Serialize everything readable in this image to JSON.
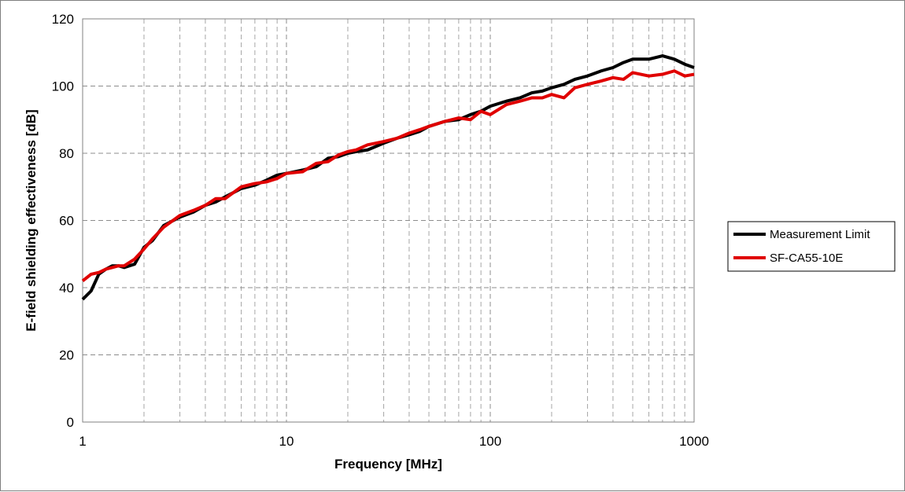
{
  "chart_data": {
    "type": "line",
    "title": "",
    "xlabel": "Frequency [MHz]",
    "ylabel": "E-field shielding effectiveness [dB]",
    "x_scale": "log",
    "xlim": [
      1,
      1000
    ],
    "ylim": [
      0,
      120
    ],
    "x_ticks": [
      "1",
      "10",
      "100",
      "1000"
    ],
    "y_ticks": [
      "0",
      "20",
      "40",
      "60",
      "80",
      "100",
      "120"
    ],
    "grid": true,
    "legend_position": "right",
    "series": [
      {
        "name": "Measurement Limit",
        "color": "#000000",
        "points": [
          [
            1,
            36.5
          ],
          [
            1.1,
            39
          ],
          [
            1.2,
            44
          ],
          [
            1.3,
            45.5
          ],
          [
            1.4,
            46.5
          ],
          [
            1.5,
            46.5
          ],
          [
            1.6,
            46
          ],
          [
            1.8,
            47
          ],
          [
            2,
            52
          ],
          [
            2.2,
            54
          ],
          [
            2.5,
            58.5
          ],
          [
            3,
            61
          ],
          [
            3.5,
            62.5
          ],
          [
            4,
            64.5
          ],
          [
            4.5,
            65.5
          ],
          [
            5,
            67
          ],
          [
            6,
            69.5
          ],
          [
            7,
            70.5
          ],
          [
            8,
            72
          ],
          [
            9,
            73.5
          ],
          [
            10,
            74
          ],
          [
            12,
            75
          ],
          [
            14,
            76
          ],
          [
            16,
            78.5
          ],
          [
            18,
            79
          ],
          [
            20,
            80
          ],
          [
            22,
            80.5
          ],
          [
            25,
            81
          ],
          [
            30,
            83
          ],
          [
            35,
            84.5
          ],
          [
            40,
            85.5
          ],
          [
            45,
            86.5
          ],
          [
            50,
            88
          ],
          [
            60,
            89.5
          ],
          [
            70,
            90
          ],
          [
            80,
            91.5
          ],
          [
            90,
            92.5
          ],
          [
            100,
            94
          ],
          [
            120,
            95.5
          ],
          [
            140,
            96.5
          ],
          [
            160,
            98
          ],
          [
            180,
            98.5
          ],
          [
            200,
            99.5
          ],
          [
            230,
            100.5
          ],
          [
            260,
            102
          ],
          [
            300,
            103
          ],
          [
            350,
            104.5
          ],
          [
            400,
            105.5
          ],
          [
            450,
            107
          ],
          [
            500,
            108
          ],
          [
            600,
            108
          ],
          [
            700,
            109
          ],
          [
            800,
            108
          ],
          [
            900,
            106.5
          ],
          [
            1000,
            105.5
          ]
        ]
      },
      {
        "name": "SF-CA55-10E",
        "color": "#e00000",
        "points": [
          [
            1,
            42
          ],
          [
            1.1,
            44
          ],
          [
            1.2,
            44.5
          ],
          [
            1.3,
            45.5
          ],
          [
            1.4,
            46
          ],
          [
            1.5,
            46.5
          ],
          [
            1.6,
            46.5
          ],
          [
            1.8,
            48.5
          ],
          [
            2,
            51.5
          ],
          [
            2.2,
            54.5
          ],
          [
            2.5,
            58
          ],
          [
            3,
            61.5
          ],
          [
            3.5,
            63
          ],
          [
            4,
            64.5
          ],
          [
            4.5,
            66.5
          ],
          [
            5,
            66.5
          ],
          [
            6,
            70
          ],
          [
            7,
            71
          ],
          [
            8,
            71.5
          ],
          [
            9,
            72.5
          ],
          [
            10,
            74
          ],
          [
            12,
            74.5
          ],
          [
            14,
            77
          ],
          [
            16,
            77.5
          ],
          [
            18,
            79.5
          ],
          [
            20,
            80.5
          ],
          [
            22,
            81
          ],
          [
            25,
            82.5
          ],
          [
            30,
            83.5
          ],
          [
            35,
            84.5
          ],
          [
            40,
            86
          ],
          [
            45,
            87
          ],
          [
            50,
            88
          ],
          [
            60,
            89.5
          ],
          [
            70,
            90.5
          ],
          [
            80,
            90
          ],
          [
            90,
            92.5
          ],
          [
            100,
            91.5
          ],
          [
            120,
            94.5
          ],
          [
            140,
            95.5
          ],
          [
            160,
            96.5
          ],
          [
            180,
            96.5
          ],
          [
            200,
            97.5
          ],
          [
            230,
            96.5
          ],
          [
            260,
            99.5
          ],
          [
            300,
            100.5
          ],
          [
            350,
            101.5
          ],
          [
            400,
            102.5
          ],
          [
            450,
            102
          ],
          [
            500,
            104
          ],
          [
            600,
            103
          ],
          [
            700,
            103.5
          ],
          [
            800,
            104.5
          ],
          [
            900,
            103
          ],
          [
            1000,
            103.5
          ]
        ]
      }
    ]
  }
}
